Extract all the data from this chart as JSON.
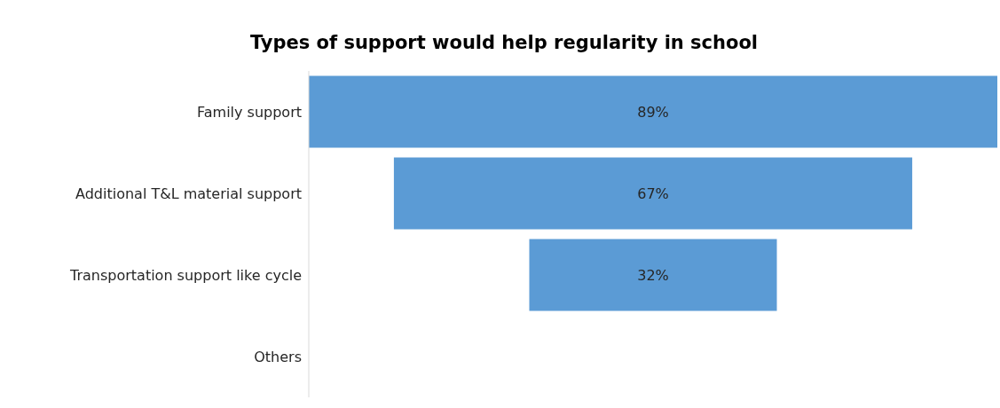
{
  "chart_data": {
    "type": "other",
    "title": "Types of support would help regularity in school",
    "categories": [
      "Family support",
      "Additional T&L material support",
      "Transportation support like cycle",
      "Others"
    ],
    "values": [
      89,
      67,
      32,
      null
    ],
    "value_labels": [
      "89%",
      "67%",
      "32%",
      null
    ],
    "color": "#5b9bd5"
  }
}
